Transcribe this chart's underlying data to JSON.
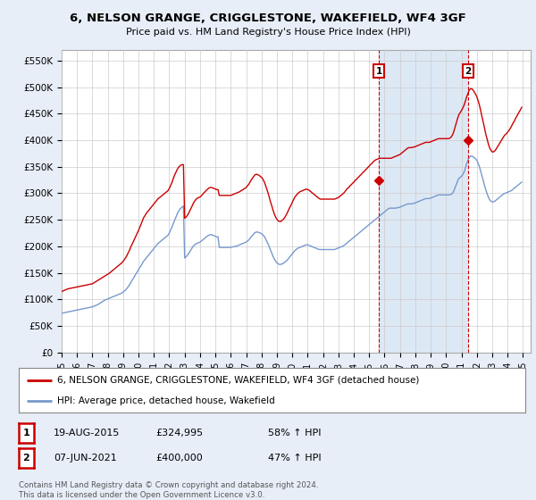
{
  "title": "6, NELSON GRANGE, CRIGGLESTONE, WAKEFIELD, WF4 3GF",
  "subtitle": "Price paid vs. HM Land Registry's House Price Index (HPI)",
  "ylabel_ticks": [
    "£0",
    "£50K",
    "£100K",
    "£150K",
    "£200K",
    "£250K",
    "£300K",
    "£350K",
    "£400K",
    "£450K",
    "£500K",
    "£550K"
  ],
  "ytick_vals": [
    0,
    50000,
    100000,
    150000,
    200000,
    250000,
    300000,
    350000,
    400000,
    450000,
    500000,
    550000
  ],
  "ylim": [
    0,
    570000
  ],
  "xlim_start": 1995.0,
  "xlim_end": 2025.5,
  "background_color": "#e8eef8",
  "plot_bg_color": "#ffffff",
  "grid_color": "#cccccc",
  "red_line_color": "#cc0000",
  "blue_line_color": "#7799cc",
  "vline_color": "#cc0000",
  "shade_color": "#dde8f5",
  "marker1_x": 2015.63,
  "marker1_y": 324995,
  "marker2_x": 2021.43,
  "marker2_y": 400000,
  "legend_label_red": "6, NELSON GRANGE, CRIGGLESTONE, WAKEFIELD, WF4 3GF (detached house)",
  "legend_label_blue": "HPI: Average price, detached house, Wakefield",
  "annotation1_num": "1",
  "annotation2_num": "2",
  "table_row1": [
    "1",
    "19-AUG-2015",
    "£324,995",
    "58% ↑ HPI"
  ],
  "table_row2": [
    "2",
    "07-JUN-2021",
    "£400,000",
    "47% ↑ HPI"
  ],
  "copyright_text": "Contains HM Land Registry data © Crown copyright and database right 2024.\nThis data is licensed under the Open Government Licence v3.0.",
  "hpi_years": [
    1995.0,
    1995.08,
    1995.17,
    1995.25,
    1995.33,
    1995.42,
    1995.5,
    1995.58,
    1995.67,
    1995.75,
    1995.83,
    1995.92,
    1996.0,
    1996.08,
    1996.17,
    1996.25,
    1996.33,
    1996.42,
    1996.5,
    1996.58,
    1996.67,
    1996.75,
    1996.83,
    1996.92,
    1997.0,
    1997.08,
    1997.17,
    1997.25,
    1997.33,
    1997.42,
    1997.5,
    1997.58,
    1997.67,
    1997.75,
    1997.83,
    1997.92,
    1998.0,
    1998.08,
    1998.17,
    1998.25,
    1998.33,
    1998.42,
    1998.5,
    1998.58,
    1998.67,
    1998.75,
    1998.83,
    1998.92,
    1999.0,
    1999.08,
    1999.17,
    1999.25,
    1999.33,
    1999.42,
    1999.5,
    1999.58,
    1999.67,
    1999.75,
    1999.83,
    1999.92,
    2000.0,
    2000.08,
    2000.17,
    2000.25,
    2000.33,
    2000.42,
    2000.5,
    2000.58,
    2000.67,
    2000.75,
    2000.83,
    2000.92,
    2001.0,
    2001.08,
    2001.17,
    2001.25,
    2001.33,
    2001.42,
    2001.5,
    2001.58,
    2001.67,
    2001.75,
    2001.83,
    2001.92,
    2002.0,
    2002.08,
    2002.17,
    2002.25,
    2002.33,
    2002.42,
    2002.5,
    2002.58,
    2002.67,
    2002.75,
    2002.83,
    2002.92,
    2003.0,
    2003.08,
    2003.17,
    2003.25,
    2003.33,
    2003.42,
    2003.5,
    2003.58,
    2003.67,
    2003.75,
    2003.83,
    2003.92,
    2004.0,
    2004.08,
    2004.17,
    2004.25,
    2004.33,
    2004.42,
    2004.5,
    2004.58,
    2004.67,
    2004.75,
    2004.83,
    2004.92,
    2005.0,
    2005.08,
    2005.17,
    2005.25,
    2005.33,
    2005.42,
    2005.5,
    2005.58,
    2005.67,
    2005.75,
    2005.83,
    2005.92,
    2006.0,
    2006.08,
    2006.17,
    2006.25,
    2006.33,
    2006.42,
    2006.5,
    2006.58,
    2006.67,
    2006.75,
    2006.83,
    2006.92,
    2007.0,
    2007.08,
    2007.17,
    2007.25,
    2007.33,
    2007.42,
    2007.5,
    2007.58,
    2007.67,
    2007.75,
    2007.83,
    2007.92,
    2008.0,
    2008.08,
    2008.17,
    2008.25,
    2008.33,
    2008.42,
    2008.5,
    2008.58,
    2008.67,
    2008.75,
    2008.83,
    2008.92,
    2009.0,
    2009.08,
    2009.17,
    2009.25,
    2009.33,
    2009.42,
    2009.5,
    2009.58,
    2009.67,
    2009.75,
    2009.83,
    2009.92,
    2010.0,
    2010.08,
    2010.17,
    2010.25,
    2010.33,
    2010.42,
    2010.5,
    2010.58,
    2010.67,
    2010.75,
    2010.83,
    2010.92,
    2011.0,
    2011.08,
    2011.17,
    2011.25,
    2011.33,
    2011.42,
    2011.5,
    2011.58,
    2011.67,
    2011.75,
    2011.83,
    2011.92,
    2012.0,
    2012.08,
    2012.17,
    2012.25,
    2012.33,
    2012.42,
    2012.5,
    2012.58,
    2012.67,
    2012.75,
    2012.83,
    2012.92,
    2013.0,
    2013.08,
    2013.17,
    2013.25,
    2013.33,
    2013.42,
    2013.5,
    2013.58,
    2013.67,
    2013.75,
    2013.83,
    2013.92,
    2014.0,
    2014.08,
    2014.17,
    2014.25,
    2014.33,
    2014.42,
    2014.5,
    2014.58,
    2014.67,
    2014.75,
    2014.83,
    2014.92,
    2015.0,
    2015.08,
    2015.17,
    2015.25,
    2015.33,
    2015.42,
    2015.5,
    2015.58,
    2015.67,
    2015.75,
    2015.83,
    2015.92,
    2016.0,
    2016.08,
    2016.17,
    2016.25,
    2016.33,
    2016.42,
    2016.5,
    2016.58,
    2016.67,
    2016.75,
    2016.83,
    2016.92,
    2017.0,
    2017.08,
    2017.17,
    2017.25,
    2017.33,
    2017.42,
    2017.5,
    2017.58,
    2017.67,
    2017.75,
    2017.83,
    2017.92,
    2018.0,
    2018.08,
    2018.17,
    2018.25,
    2018.33,
    2018.42,
    2018.5,
    2018.58,
    2018.67,
    2018.75,
    2018.83,
    2018.92,
    2019.0,
    2019.08,
    2019.17,
    2019.25,
    2019.33,
    2019.42,
    2019.5,
    2019.58,
    2019.67,
    2019.75,
    2019.83,
    2019.92,
    2020.0,
    2020.08,
    2020.17,
    2020.25,
    2020.33,
    2020.42,
    2020.5,
    2020.58,
    2020.67,
    2020.75,
    2020.83,
    2020.92,
    2021.0,
    2021.08,
    2021.17,
    2021.25,
    2021.33,
    2021.42,
    2021.5,
    2021.58,
    2021.67,
    2021.75,
    2021.83,
    2021.92,
    2022.0,
    2022.08,
    2022.17,
    2022.25,
    2022.33,
    2022.42,
    2022.5,
    2022.58,
    2022.67,
    2022.75,
    2022.83,
    2022.92,
    2023.0,
    2023.08,
    2023.17,
    2023.25,
    2023.33,
    2023.42,
    2023.5,
    2023.58,
    2023.67,
    2023.75,
    2023.83,
    2023.92,
    2024.0,
    2024.08,
    2024.17,
    2024.25,
    2024.33,
    2024.42,
    2024.5,
    2024.58,
    2024.67,
    2024.75,
    2024.83,
    2024.92
  ],
  "hpi_values": [
    74000,
    74500,
    75000,
    75500,
    76000,
    76500,
    77000,
    77500,
    78000,
    78500,
    79000,
    79500,
    80000,
    80500,
    81000,
    81500,
    82000,
    82500,
    83000,
    83500,
    84000,
    84500,
    85000,
    85500,
    86000,
    87000,
    88000,
    89000,
    90000,
    91500,
    93000,
    94500,
    96000,
    97500,
    99000,
    100000,
    101000,
    102000,
    103000,
    104000,
    105000,
    106000,
    107000,
    108000,
    109000,
    110000,
    111000,
    112000,
    114000,
    116000,
    118000,
    121000,
    124000,
    128000,
    132000,
    136000,
    140000,
    144000,
    148000,
    152000,
    156000,
    160000,
    164000,
    168000,
    172000,
    175000,
    178000,
    181000,
    184000,
    187000,
    190000,
    193000,
    196000,
    199000,
    202000,
    205000,
    207000,
    209000,
    211000,
    213000,
    215000,
    217000,
    219000,
    221000,
    225000,
    230000,
    236000,
    242000,
    248000,
    254000,
    260000,
    265000,
    269000,
    272000,
    274000,
    276000,
    178000,
    180000,
    183000,
    186000,
    190000,
    194000,
    198000,
    201000,
    203000,
    205000,
    206000,
    207000,
    208000,
    210000,
    212000,
    214000,
    216000,
    218000,
    220000,
    221000,
    222000,
    222000,
    221000,
    220000,
    219000,
    218000,
    218000,
    198000,
    198000,
    198000,
    198000,
    198000,
    198000,
    198000,
    198000,
    198000,
    198000,
    199000,
    199000,
    200000,
    200000,
    201000,
    202000,
    203000,
    204000,
    205000,
    206000,
    207000,
    208000,
    210000,
    212000,
    215000,
    218000,
    221000,
    224000,
    226000,
    227000,
    227000,
    226000,
    225000,
    224000,
    222000,
    219000,
    215000,
    210000,
    205000,
    199000,
    193000,
    187000,
    181000,
    176000,
    172000,
    169000,
    167000,
    166000,
    166000,
    167000,
    168000,
    170000,
    172000,
    174000,
    177000,
    180000,
    183000,
    186000,
    189000,
    192000,
    194000,
    196000,
    197000,
    198000,
    199000,
    200000,
    201000,
    202000,
    203000,
    203000,
    202000,
    201000,
    200000,
    199000,
    198000,
    197000,
    196000,
    195000,
    194000,
    194000,
    194000,
    194000,
    194000,
    194000,
    194000,
    194000,
    194000,
    194000,
    194000,
    194000,
    194000,
    195000,
    196000,
    197000,
    198000,
    199000,
    200000,
    201000,
    203000,
    205000,
    207000,
    209000,
    211000,
    213000,
    215000,
    217000,
    219000,
    221000,
    223000,
    225000,
    227000,
    229000,
    231000,
    233000,
    235000,
    237000,
    239000,
    241000,
    243000,
    245000,
    247000,
    249000,
    251000,
    253000,
    255000,
    257000,
    259000,
    261000,
    263000,
    265000,
    267000,
    269000,
    271000,
    272000,
    272000,
    272000,
    272000,
    272000,
    272000,
    273000,
    273000,
    274000,
    275000,
    276000,
    277000,
    278000,
    279000,
    280000,
    280000,
    280000,
    280000,
    281000,
    281000,
    282000,
    283000,
    284000,
    285000,
    286000,
    287000,
    288000,
    289000,
    290000,
    290000,
    290000,
    290000,
    291000,
    292000,
    293000,
    294000,
    295000,
    296000,
    297000,
    297000,
    297000,
    297000,
    297000,
    297000,
    297000,
    297000,
    297000,
    297000,
    298000,
    300000,
    304000,
    310000,
    317000,
    323000,
    328000,
    330000,
    332000,
    335000,
    340000,
    347000,
    355000,
    362000,
    367000,
    370000,
    370000,
    369000,
    367000,
    365000,
    362000,
    357000,
    350000,
    342000,
    333000,
    324000,
    315000,
    307000,
    299000,
    293000,
    288000,
    285000,
    284000,
    284000,
    285000,
    287000,
    289000,
    291000,
    293000,
    295000,
    297000,
    299000,
    300000,
    301000,
    302000,
    303000,
    304000,
    305000,
    307000,
    309000,
    311000,
    313000,
    315000,
    317000,
    319000,
    321000
  ],
  "red_values": [
    115000,
    116000,
    117000,
    118000,
    119000,
    120000,
    120500,
    121000,
    121500,
    122000,
    122500,
    123000,
    123500,
    124000,
    124500,
    125000,
    125500,
    126000,
    126500,
    127000,
    127500,
    128000,
    128500,
    129000,
    129500,
    131000,
    132500,
    134000,
    135500,
    137000,
    138500,
    140000,
    141500,
    143000,
    144500,
    146000,
    147500,
    149000,
    151000,
    153000,
    155000,
    157000,
    159000,
    161000,
    163000,
    165000,
    167000,
    169000,
    172000,
    175000,
    179000,
    183000,
    188000,
    193000,
    199000,
    204000,
    210000,
    215000,
    220000,
    225000,
    230000,
    236000,
    242000,
    248000,
    254000,
    258000,
    262000,
    265000,
    268000,
    271000,
    274000,
    277000,
    280000,
    283000,
    286000,
    289000,
    291000,
    293000,
    295000,
    297000,
    299000,
    301000,
    303000,
    305000,
    309000,
    314000,
    320000,
    327000,
    333000,
    339000,
    344000,
    348000,
    351000,
    353000,
    354000,
    354000,
    253000,
    255000,
    258000,
    262000,
    267000,
    272000,
    277000,
    282000,
    286000,
    289000,
    291000,
    292000,
    293000,
    295000,
    298000,
    301000,
    303000,
    306000,
    308000,
    310000,
    311000,
    311000,
    310000,
    309000,
    308000,
    307000,
    307000,
    296000,
    296000,
    296000,
    296000,
    296000,
    296000,
    296000,
    296000,
    296000,
    296000,
    297000,
    298000,
    299000,
    300000,
    301000,
    302000,
    303000,
    305000,
    306000,
    308000,
    309000,
    311000,
    314000,
    317000,
    321000,
    325000,
    329000,
    332000,
    335000,
    336000,
    335000,
    334000,
    332000,
    330000,
    327000,
    322000,
    316000,
    309000,
    301000,
    293000,
    284000,
    276000,
    268000,
    261000,
    255000,
    251000,
    248000,
    247000,
    247000,
    249000,
    251000,
    254000,
    258000,
    263000,
    268000,
    273000,
    278000,
    283000,
    288000,
    293000,
    296000,
    299000,
    301000,
    303000,
    304000,
    305000,
    306000,
    307000,
    308000,
    307000,
    306000,
    304000,
    302000,
    300000,
    298000,
    296000,
    294000,
    292000,
    290000,
    289000,
    289000,
    289000,
    289000,
    289000,
    289000,
    289000,
    289000,
    289000,
    289000,
    289000,
    289000,
    290000,
    291000,
    292000,
    294000,
    296000,
    298000,
    300000,
    303000,
    306000,
    309000,
    311000,
    314000,
    316000,
    319000,
    321000,
    324000,
    326000,
    329000,
    331000,
    334000,
    336000,
    339000,
    341000,
    344000,
    346000,
    349000,
    351000,
    354000,
    356000,
    359000,
    361000,
    363000,
    364000,
    365000,
    366000,
    366000,
    366000,
    366000,
    366000,
    366000,
    366000,
    366000,
    366000,
    366000,
    367000,
    368000,
    369000,
    370000,
    371000,
    372000,
    373000,
    375000,
    377000,
    379000,
    381000,
    383000,
    385000,
    386000,
    386000,
    386000,
    387000,
    387000,
    388000,
    389000,
    390000,
    391000,
    392000,
    393000,
    394000,
    395000,
    396000,
    396000,
    396000,
    396000,
    397000,
    398000,
    399000,
    400000,
    401000,
    402000,
    403000,
    403000,
    403000,
    403000,
    403000,
    403000,
    403000,
    403000,
    403000,
    404000,
    406000,
    410000,
    416000,
    424000,
    433000,
    441000,
    448000,
    452000,
    456000,
    460000,
    466000,
    473000,
    481000,
    488000,
    494000,
    497000,
    497000,
    495000,
    491000,
    487000,
    482000,
    475000,
    466000,
    456000,
    445000,
    434000,
    423000,
    412000,
    402000,
    393000,
    386000,
    381000,
    378000,
    378000,
    380000,
    383000,
    387000,
    391000,
    395000,
    399000,
    403000,
    407000,
    410000,
    412000,
    415000,
    418000,
    422000,
    426000,
    431000,
    435000,
    440000,
    444000,
    449000,
    453000,
    457000,
    462000
  ]
}
